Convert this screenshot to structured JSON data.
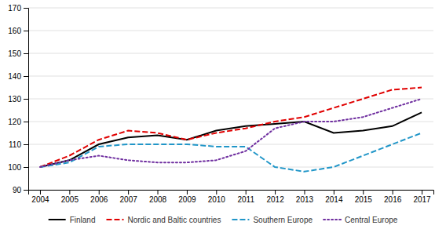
{
  "chart_data": {
    "type": "line",
    "x": [
      2004,
      2005,
      2006,
      2007,
      2008,
      2009,
      2010,
      2011,
      2012,
      2013,
      2014,
      2015,
      2016,
      2017
    ],
    "series": [
      {
        "name": "Finland",
        "color": "#000000",
        "line_style": "solid",
        "values": [
          100,
          103,
          110,
          113,
          114,
          112,
          116,
          118,
          119,
          120,
          115,
          116,
          118,
          124
        ]
      },
      {
        "name": "Nordic and Baltic countries",
        "color": "#e00000",
        "line_style": "dashed",
        "values": [
          100,
          105,
          112,
          116,
          115,
          112,
          115,
          117,
          120,
          122,
          126,
          130,
          134,
          135
        ]
      },
      {
        "name": "Southern Europe",
        "color": "#2196c8",
        "line_style": "dashed",
        "values": [
          100,
          102,
          109,
          110,
          110,
          110,
          109,
          109,
          100,
          98,
          100,
          105,
          110,
          115
        ]
      },
      {
        "name": "Central Europe",
        "color": "#7030a0",
        "line_style": "dotted",
        "values": [
          100,
          103,
          105,
          103,
          102,
          102,
          103,
          107,
          117,
          120,
          120,
          122,
          126,
          130
        ]
      }
    ],
    "xlim": [
      2003.6,
      2017.4
    ],
    "xticks": [
      2004,
      2005,
      2006,
      2007,
      2008,
      2009,
      2010,
      2011,
      2012,
      2013,
      2014,
      2015,
      2016,
      2017
    ],
    "ylim": [
      90,
      170
    ],
    "yticks": [
      90,
      100,
      110,
      120,
      130,
      140,
      150,
      160,
      170
    ],
    "grid": true,
    "legend": "bottom"
  }
}
